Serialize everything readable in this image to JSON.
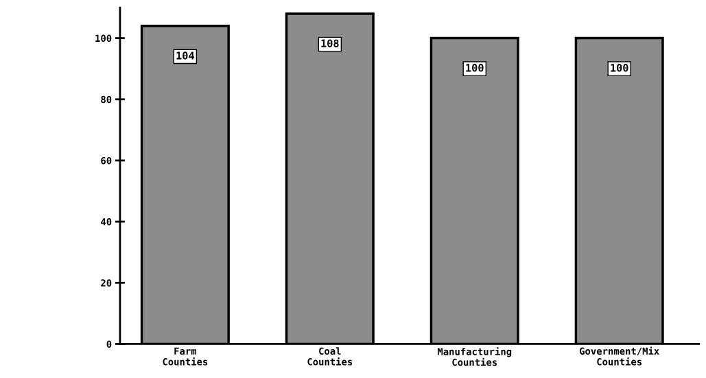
{
  "chart_data": {
    "type": "bar",
    "categories": [
      "Farm\nCounties",
      "Coal\nCounties",
      "Manufacturing\nCounties",
      "Government/Mix\nCounties"
    ],
    "values": [
      104,
      108,
      100,
      100
    ],
    "color": "#8c8c8c",
    "ylim": [
      0,
      110
    ],
    "yticks": [
      0,
      20,
      40,
      60,
      80,
      100
    ],
    "data_labels": true,
    "grid": false,
    "legend": false
  }
}
